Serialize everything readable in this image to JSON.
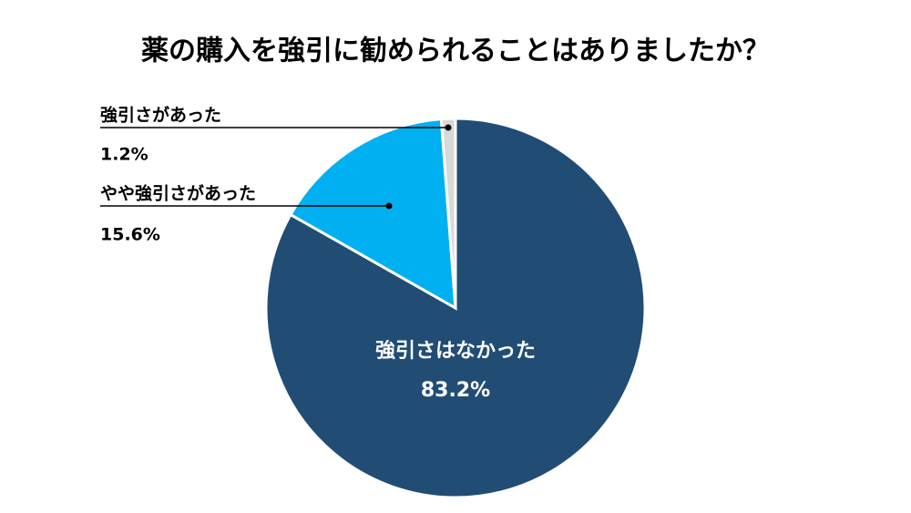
{
  "chart_data": {
    "type": "pie",
    "title": "薬の購入を強引に勧められることはありましたか？",
    "categories": [
      "強引さはなかった",
      "やや強引さがあった",
      "強引さがあった"
    ],
    "values": [
      83.2,
      15.6,
      1.2
    ],
    "value_labels": [
      "83.2%",
      "15.6%",
      "1.2%"
    ],
    "colors": [
      "#214d75",
      "#00b0f0",
      "#d9d9d9"
    ]
  }
}
